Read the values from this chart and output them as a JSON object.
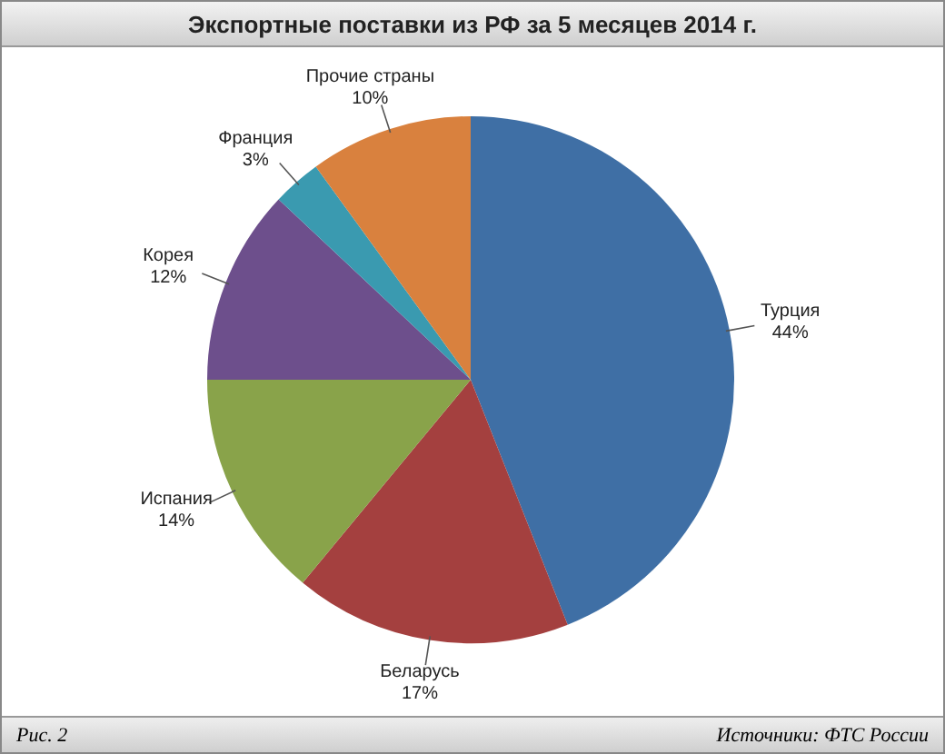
{
  "chart_data": {
    "type": "pie",
    "title": "Экспортные поставки из РФ за 5 месяцев 2014 г.",
    "categories": [
      "Турция",
      "Беларусь",
      "Испания",
      "Корея",
      "Франция",
      "Прочие страны"
    ],
    "values": [
      44,
      17,
      14,
      12,
      3,
      10
    ],
    "colors": [
      "#3f6fa5",
      "#a4403f",
      "#89a34a",
      "#6d4f8c",
      "#3a9ab0",
      "#d9813e"
    ],
    "value_labels": [
      "44%",
      "17%",
      "14%",
      "12%",
      "3%",
      "10%"
    ],
    "annotations": [
      "Рис. 2",
      "Источники: ФТС России"
    ]
  }
}
